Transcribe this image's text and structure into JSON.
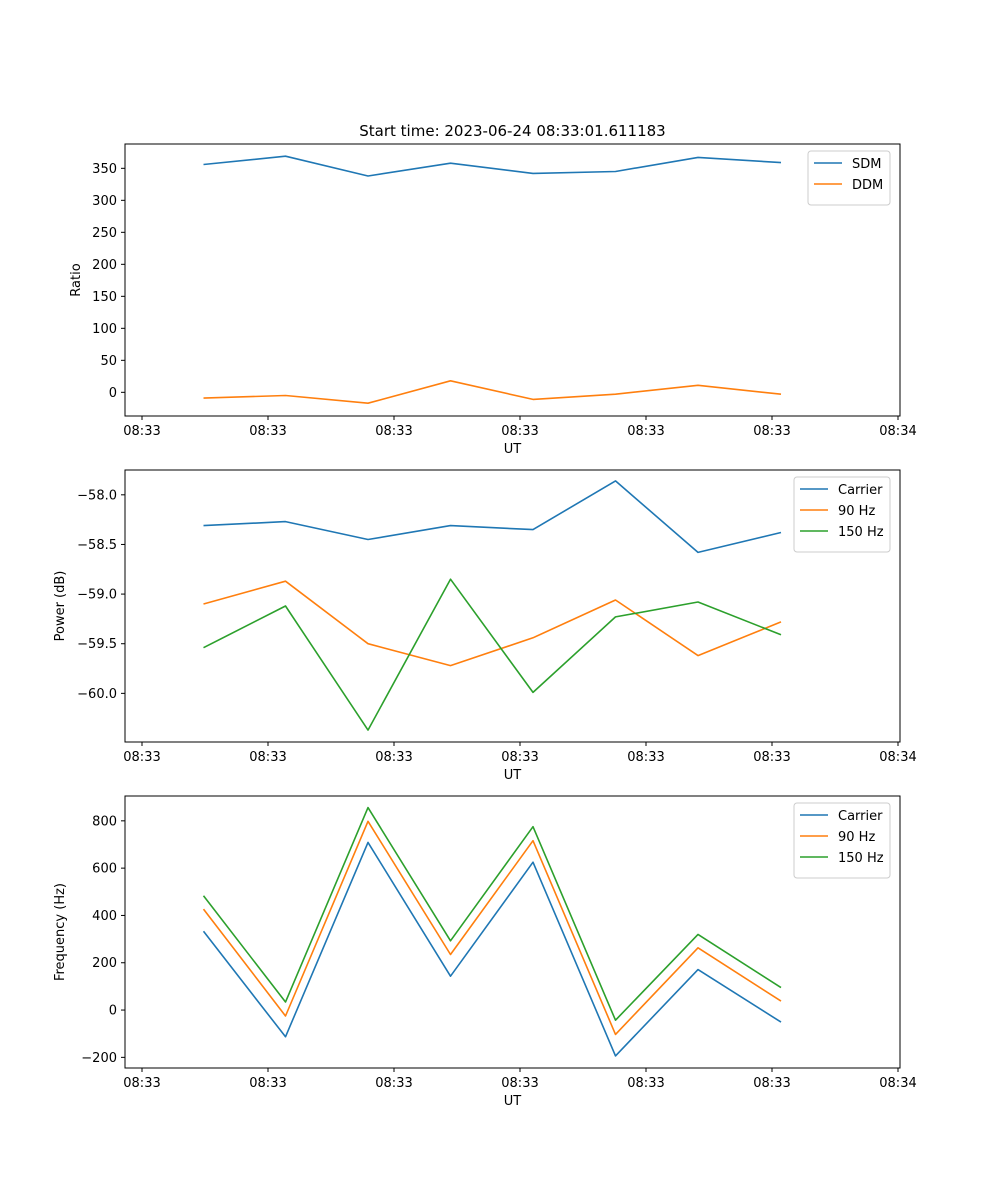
{
  "figure": {
    "title": "Start time: 2023-06-24 08:33:01.611183"
  },
  "chart_data": [
    {
      "type": "line",
      "xlabel": "UT",
      "ylabel": "Ratio",
      "x_tick_labels": [
        "08:33",
        "08:33",
        "08:33",
        "08:33",
        "08:33",
        "08:33",
        "08:34"
      ],
      "y_ticks": [
        0,
        50,
        100,
        150,
        200,
        250,
        300,
        350
      ],
      "ylim": [
        -37,
        388
      ],
      "x": [
        1,
        2,
        3,
        4,
        5,
        6,
        7,
        8
      ],
      "legend_position": "top-right",
      "series": [
        {
          "name": "SDM",
          "color": "#1f77b4",
          "values": [
            356,
            369,
            338,
            358,
            342,
            345,
            367,
            359
          ]
        },
        {
          "name": "DDM",
          "color": "#ff7f0e",
          "values": [
            -9,
            -5,
            -17,
            18,
            -11,
            -3,
            11,
            -3
          ]
        }
      ]
    },
    {
      "type": "line",
      "xlabel": "UT",
      "ylabel": "Power (dB)",
      "x_tick_labels": [
        "08:33",
        "08:33",
        "08:33",
        "08:33",
        "08:33",
        "08:33",
        "08:34"
      ],
      "y_ticks": [
        -58.0,
        -58.5,
        -59.0,
        -59.5,
        -60.0
      ],
      "y_tick_labels": [
        "−58.0",
        "−58.5",
        "−59.0",
        "−59.5",
        "−60.0"
      ],
      "ylim": [
        -60.49,
        -57.75
      ],
      "x": [
        1,
        2,
        3,
        4,
        5,
        6,
        7,
        8
      ],
      "legend_position": "top-right",
      "series": [
        {
          "name": "Carrier",
          "color": "#1f77b4",
          "values": [
            -58.31,
            -58.27,
            -58.45,
            -58.31,
            -58.35,
            -57.86,
            -58.58,
            -58.38
          ]
        },
        {
          "name": "90 Hz",
          "color": "#ff7f0e",
          "values": [
            -59.1,
            -58.87,
            -59.5,
            -59.72,
            -59.44,
            -59.06,
            -59.62,
            -59.28
          ]
        },
        {
          "name": "150 Hz",
          "color": "#2ca02c",
          "values": [
            -59.54,
            -59.12,
            -60.37,
            -58.85,
            -59.99,
            -59.23,
            -59.08,
            -59.41
          ]
        }
      ]
    },
    {
      "type": "line",
      "xlabel": "UT",
      "ylabel": "Frequency (Hz)",
      "x_tick_labels": [
        "08:33",
        "08:33",
        "08:33",
        "08:33",
        "08:33",
        "08:33",
        "08:34"
      ],
      "y_ticks": [
        -200,
        0,
        200,
        400,
        600,
        800
      ],
      "y_tick_labels": [
        "−200",
        "0",
        "200",
        "400",
        "600",
        "800"
      ],
      "ylim": [
        -245,
        905
      ],
      "x": [
        1,
        2,
        3,
        4,
        5,
        6,
        7,
        8
      ],
      "legend_position": "top-right",
      "series": [
        {
          "name": "Carrier",
          "color": "#1f77b4",
          "values": [
            333,
            -113,
            709,
            143,
            625,
            -194,
            171,
            -51
          ]
        },
        {
          "name": "90 Hz",
          "color": "#ff7f0e",
          "values": [
            427,
            -25,
            798,
            235,
            716,
            -103,
            263,
            38
          ]
        },
        {
          "name": "150 Hz",
          "color": "#2ca02c",
          "values": [
            483,
            34,
            856,
            293,
            775,
            -43,
            320,
            95
          ]
        }
      ]
    }
  ]
}
